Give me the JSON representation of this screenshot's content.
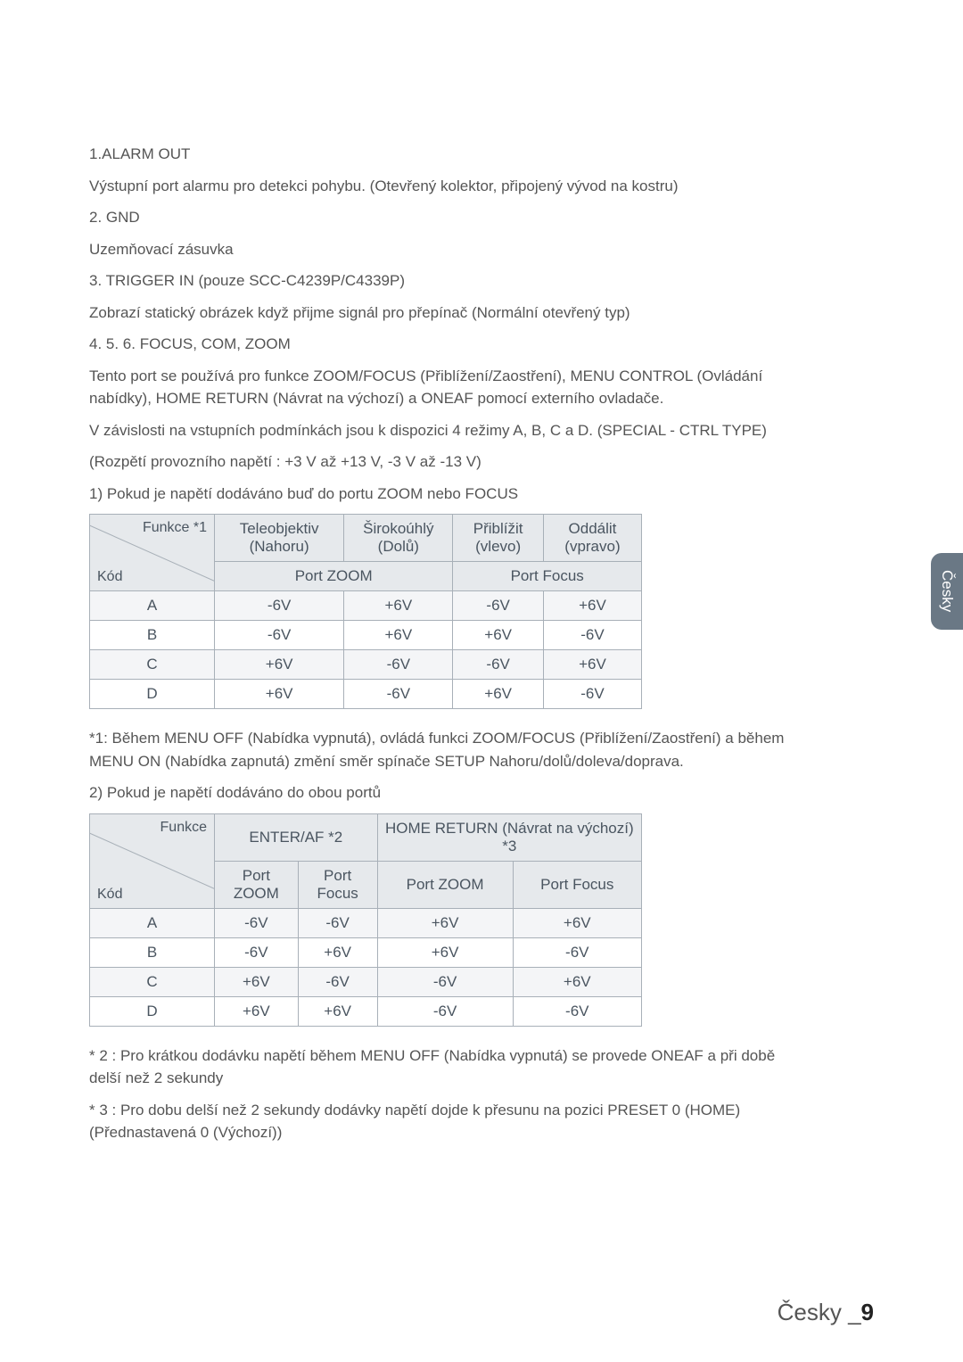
{
  "sections": [
    {
      "items": [
        "1.ALARM OUT",
        "Výstupní port alarmu pro detekci pohybu. (Otevřený kolektor, připojený vývod na kostru)",
        "2. GND",
        "Uzemňovací zásuvka",
        "3. TRIGGER IN (pouze SCC-C4239P/C4339P)",
        "Zobrazí statický obrázek když přijme signál pro přepínač (Normální otevřený typ)",
        "4. 5. 6. FOCUS, COM, ZOOM",
        "Tento port se používá pro funkce ZOOM/FOCUS (Přiblížení/Zaostření), MENU CONTROL (Ovládání nabídky), HOME RETURN (Návrat na výchozí) a ONEAF pomocí externího ovladače.",
        "V závislosti na vstupních podmínkách jsou k dispozici 4 režimy A, B, C a D. (SPECIAL - CTRL TYPE)",
        "(Rozpětí provozního napětí : +3 V až +13 V, -3 V až -13 V)",
        "1) Pokud je napětí dodáváno buď do portu ZOOM nebo FOCUS"
      ]
    }
  ],
  "table1": {
    "diag_top": "Funkce *1",
    "diag_bot": "Kód",
    "head": [
      "Teleobjektiv (Nahoru)",
      "Širokoúhlý (Dolů)",
      "Přiblížit (vlevo)",
      "Oddálit (vpravo)"
    ],
    "subhead": [
      "Port ZOOM",
      "Port Focus"
    ],
    "rows": [
      [
        "A",
        "-6V",
        "+6V",
        "-6V",
        "+6V"
      ],
      [
        "B",
        "-6V",
        "+6V",
        "+6V",
        "-6V"
      ],
      [
        "C",
        "+6V",
        "-6V",
        "-6V",
        "+6V"
      ],
      [
        "D",
        "+6V",
        "-6V",
        "+6V",
        "-6V"
      ]
    ]
  },
  "mid_notes": [
    "*1: Během MENU OFF (Nabídka vypnutá), ovládá funkci ZOOM/FOCUS (Přiblížení/Zaostření) a během MENU ON (Nabídka zapnutá) změní směr spínače SETUP Nahoru/dolů/doleva/doprava.",
    "2) Pokud je napětí dodáváno do obou portů"
  ],
  "table2": {
    "diag_top": "Funkce",
    "diag_bot": "Kód",
    "head": [
      "ENTER/AF *2",
      "HOME RETURN (Návrat na výchozí) *3"
    ],
    "subhead": [
      "Port ZOOM",
      "Port Focus",
      "Port ZOOM",
      "Port Focus"
    ],
    "rows": [
      [
        "A",
        "-6V",
        "-6V",
        "+6V",
        "+6V"
      ],
      [
        "B",
        "-6V",
        "+6V",
        "+6V",
        "-6V"
      ],
      [
        "C",
        "+6V",
        "-6V",
        "-6V",
        "+6V"
      ],
      [
        "D",
        "+6V",
        "+6V",
        "-6V",
        "-6V"
      ]
    ]
  },
  "foot_notes": [
    "* 2 : Pro krátkou dodávku napětí během MENU OFF (Nabídka vypnutá) se provede ONEAF a při době delší než 2 sekundy",
    "* 3 : Pro dobu delší než 2 sekundy dodávky napětí dojde k přesunu na pozici PRESET 0 (HOME) (Přednastavená 0 (Výchozí))"
  ],
  "side_tab": "Česky",
  "footer_lang": "Česky _",
  "footer_page": "9"
}
